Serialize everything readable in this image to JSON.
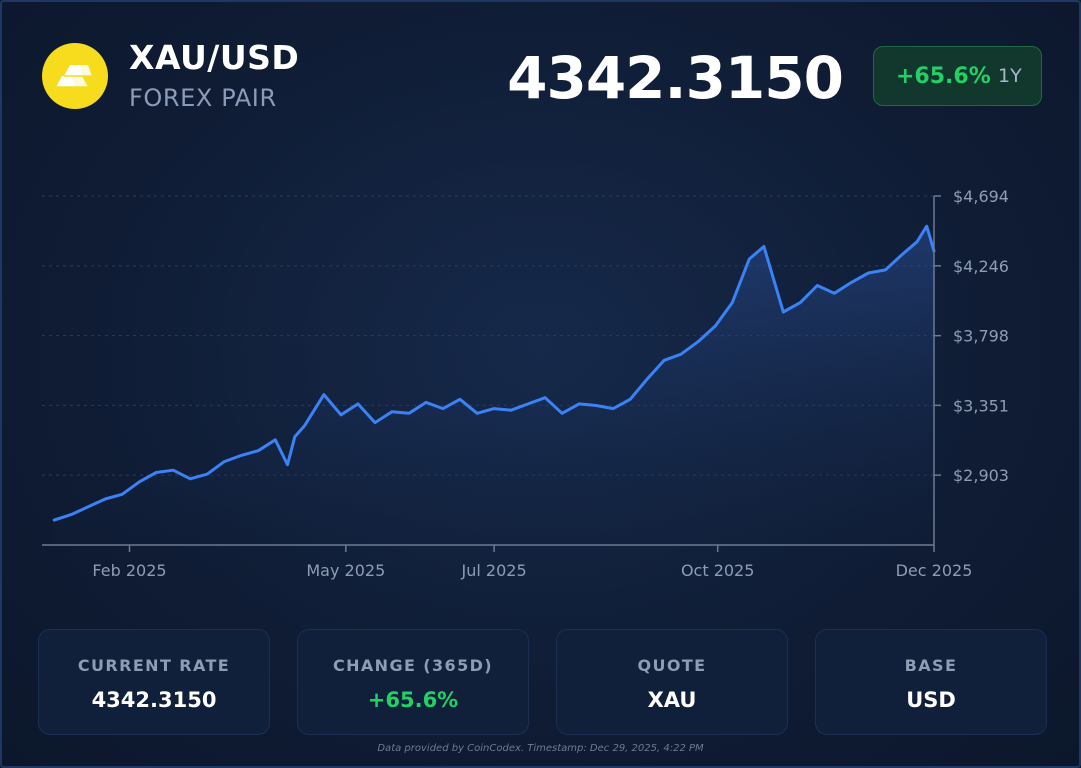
{
  "header": {
    "logo_icon": "gold-bars-icon",
    "logo_color": "#f6dc1d",
    "pair": "XAU/USD",
    "type": "FOREX PAIR",
    "rate": "4342.3150",
    "change": "+65.6%",
    "period": "1Y"
  },
  "chart_data": {
    "type": "area",
    "title": "",
    "xlabel": "",
    "ylabel": "",
    "x_ticks": [
      "Feb 2025",
      "May 2025",
      "Jul 2025",
      "Oct 2025",
      "Dec 2025"
    ],
    "y_ticks": [
      "$2,903",
      "$3,351",
      "$3,798",
      "$4,246",
      "$4,694"
    ],
    "y_tick_values": [
      2903,
      3351,
      3798,
      4246,
      4694
    ],
    "ylim": [
      2455,
      4694
    ],
    "grid": true,
    "line_color": "#3b82f6",
    "series": [
      {
        "x": [
          "2025-01-01",
          "2025-01-08",
          "2025-01-15",
          "2025-01-22",
          "2025-01-29",
          "2025-02-05",
          "2025-02-12",
          "2025-02-19",
          "2025-02-26",
          "2025-03-05",
          "2025-03-12",
          "2025-03-19",
          "2025-03-26",
          "2025-04-02",
          "2025-04-07",
          "2025-04-10",
          "2025-04-14",
          "2025-04-22",
          "2025-04-29",
          "2025-05-06",
          "2025-05-13",
          "2025-05-20",
          "2025-05-27",
          "2025-06-03",
          "2025-06-10",
          "2025-06-17",
          "2025-06-24",
          "2025-07-01",
          "2025-07-08",
          "2025-07-15",
          "2025-07-22",
          "2025-07-29",
          "2025-08-05",
          "2025-08-12",
          "2025-08-19",
          "2025-08-26",
          "2025-09-02",
          "2025-09-09",
          "2025-09-16",
          "2025-09-23",
          "2025-09-30",
          "2025-10-07",
          "2025-10-14",
          "2025-10-20",
          "2025-10-28",
          "2025-11-04",
          "2025-11-11",
          "2025-11-18",
          "2025-11-25",
          "2025-12-02",
          "2025-12-09",
          "2025-12-16",
          "2025-12-22",
          "2025-12-26",
          "2025-12-29"
        ],
        "values": [
          2615,
          2650,
          2700,
          2750,
          2780,
          2860,
          2920,
          2935,
          2880,
          2910,
          2990,
          3030,
          3060,
          3130,
          2970,
          3150,
          3220,
          3420,
          3290,
          3360,
          3240,
          3310,
          3300,
          3370,
          3330,
          3390,
          3300,
          3330,
          3320,
          3360,
          3400,
          3300,
          3360,
          3350,
          3330,
          3390,
          3520,
          3640,
          3680,
          3760,
          3860,
          4010,
          4290,
          4370,
          3950,
          4010,
          4120,
          4070,
          4140,
          4200,
          4220,
          4320,
          4400,
          4500,
          4342
        ]
      }
    ]
  },
  "cards": [
    {
      "label": "CURRENT RATE",
      "value": "4342.3150"
    },
    {
      "label": "CHANGE (365D)",
      "value": "+65.6%"
    },
    {
      "label": "QUOTE",
      "value": "XAU"
    },
    {
      "label": "BASE",
      "value": "USD"
    }
  ],
  "footer": "Data provided by CoinCodex. Timestamp: Dec 29, 2025, 4:22 PM",
  "colors": {
    "positive": "#22d166",
    "background": "#0e1a30",
    "card_border": "#1c2f52"
  }
}
